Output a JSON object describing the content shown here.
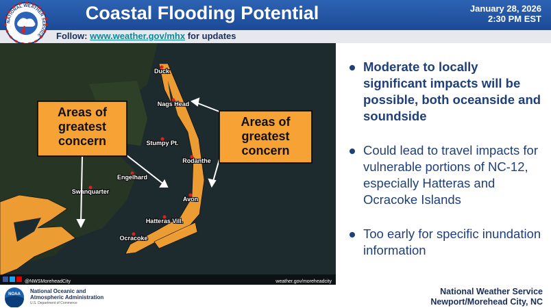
{
  "header": {
    "logo_text": "NATIONAL WEATHER SERVICE",
    "title": "Coastal Flooding Potential",
    "date": "January 28, 2026",
    "time": "2:30 PM EST",
    "follow_prefix": "Follow:",
    "follow_link": "www.weather.gov/mhx",
    "follow_suffix": "for updates"
  },
  "map": {
    "places": [
      "Duck",
      "Nags Head",
      "Stumpy Pt.",
      "Rodanthe",
      "Engelhard",
      "Swanquarter",
      "Avon",
      "Hatteras Vill.",
      "Ocracoke"
    ],
    "callouts": [
      "Areas of greatest concern",
      "Areas of greatest concern"
    ],
    "social": "@NWSMoreheadCity",
    "url": "weather.gov/moreheadcity"
  },
  "bullets": [
    "Moderate to locally significant impacts will be possible, both oceanside and soundside",
    "Could lead to travel impacts for vulnerable portions of NC-12, especially Hatteras and Ocracoke Islands",
    "Too early for specific inundation information"
  ],
  "footer": {
    "noaa_logo": "NOAA",
    "noaa_line1": "National Oceanic and",
    "noaa_line2": "Atmospheric Administration",
    "noaa_line3": "U.S. Department of Commerce",
    "office_line1": "National Weather Service",
    "office_line2": "Newport/Morehead City, NC"
  }
}
